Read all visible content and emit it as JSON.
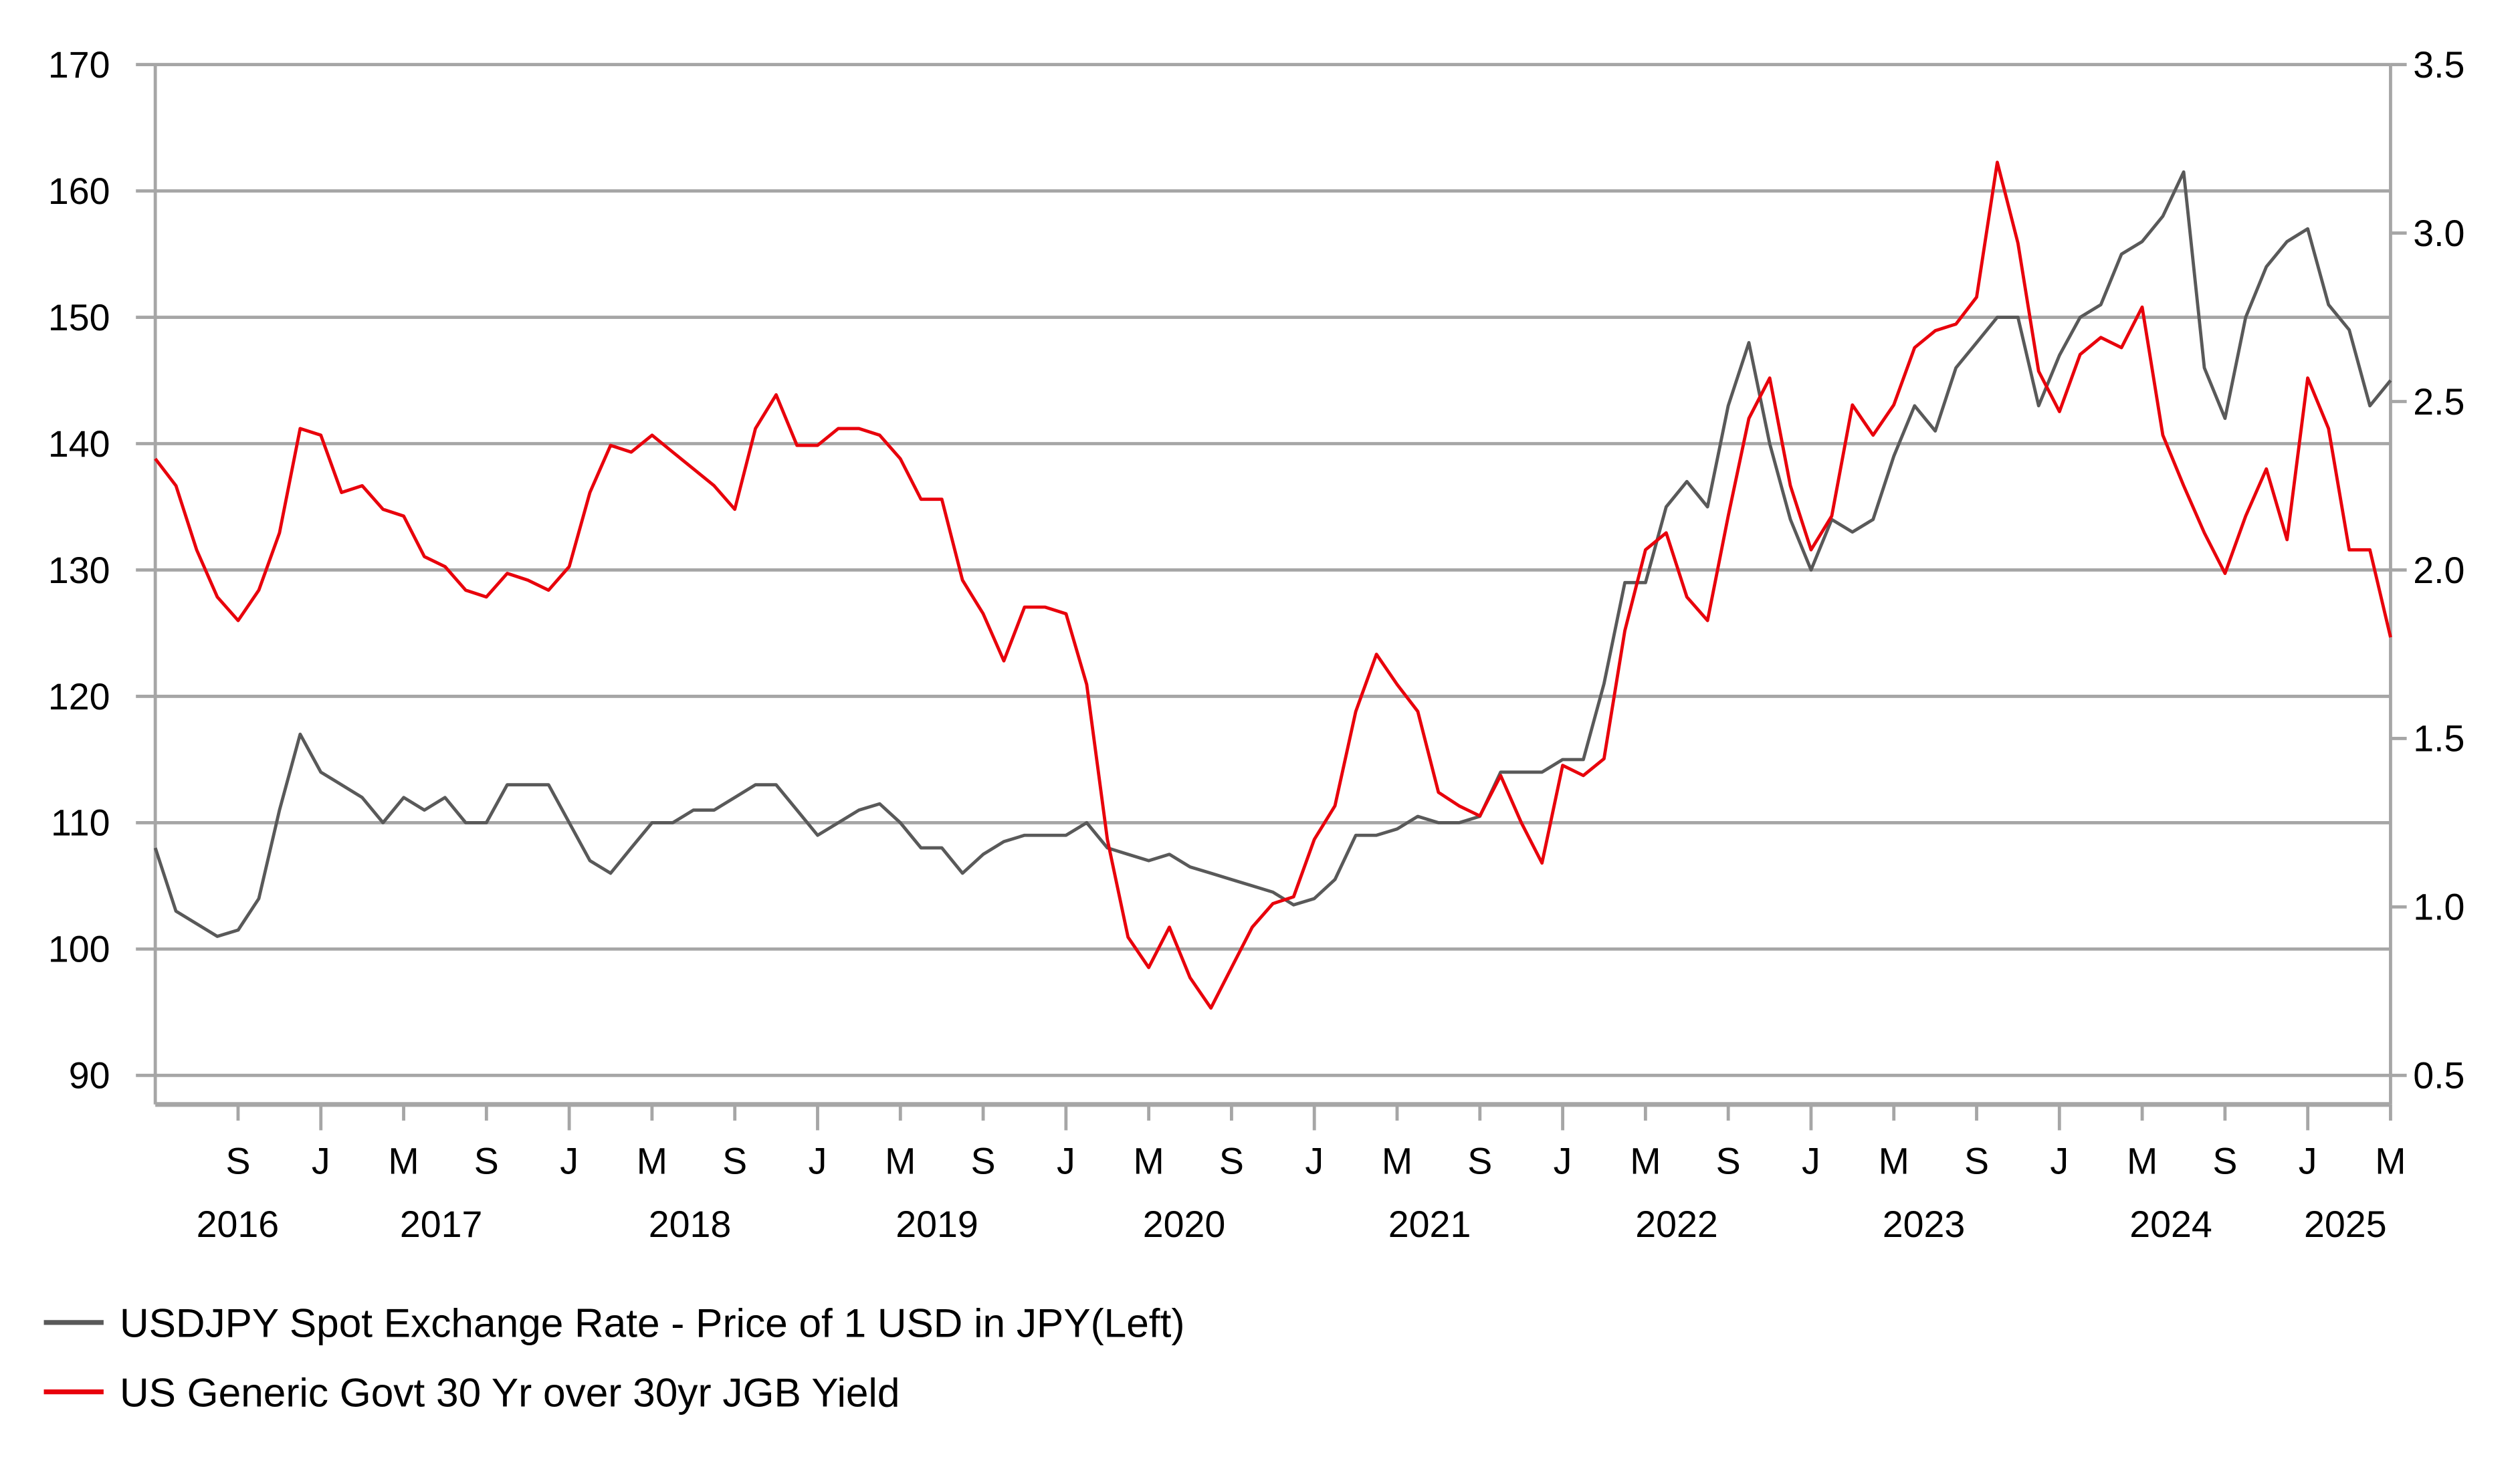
{
  "chart_data": {
    "type": "line",
    "title": "",
    "x_type": "date",
    "xlim": [
      "2016-05",
      "2025-05"
    ],
    "x_month_labels": [
      "S",
      "J",
      "M",
      "S",
      "J",
      "M",
      "S",
      "J",
      "M",
      "S",
      "J",
      "M",
      "S",
      "J",
      "M",
      "S",
      "J",
      "M",
      "S",
      "J",
      "M",
      "S",
      "J",
      "M",
      "S",
      "J",
      "M"
    ],
    "x_month_dates": [
      "2016-09",
      "2017-01",
      "2017-05",
      "2017-09",
      "2018-01",
      "2018-05",
      "2018-09",
      "2019-01",
      "2019-05",
      "2019-09",
      "2020-01",
      "2020-05",
      "2020-09",
      "2021-01",
      "2021-05",
      "2021-09",
      "2022-01",
      "2022-05",
      "2022-09",
      "2023-01",
      "2023-05",
      "2023-09",
      "2024-01",
      "2024-05",
      "2024-09",
      "2025-01",
      "2025-05"
    ],
    "x_year_labels": [
      "2016",
      "2017",
      "2018",
      "2019",
      "2020",
      "2021",
      "2022",
      "2023",
      "2024",
      "2025"
    ],
    "y_left": {
      "ylim": [
        90,
        170
      ],
      "ticks": [
        "90",
        "100",
        "110",
        "120",
        "130",
        "140",
        "150",
        "160",
        "170"
      ]
    },
    "y_right": {
      "ylim": [
        0.5,
        3.5
      ],
      "ticks": [
        "0.5",
        "1.0",
        "1.5",
        "2.0",
        "2.5",
        "3.0",
        "3.5"
      ]
    },
    "grid": true,
    "legend_placement": "bottom-left",
    "x": [
      "2016-05",
      "2016-06",
      "2016-07",
      "2016-08",
      "2016-09",
      "2016-10",
      "2016-11",
      "2016-12",
      "2017-01",
      "2017-02",
      "2017-03",
      "2017-04",
      "2017-05",
      "2017-06",
      "2017-07",
      "2017-08",
      "2017-09",
      "2017-10",
      "2017-11",
      "2017-12",
      "2018-01",
      "2018-02",
      "2018-03",
      "2018-04",
      "2018-05",
      "2018-06",
      "2018-07",
      "2018-08",
      "2018-09",
      "2018-10",
      "2018-11",
      "2018-12",
      "2019-01",
      "2019-02",
      "2019-03",
      "2019-04",
      "2019-05",
      "2019-06",
      "2019-07",
      "2019-08",
      "2019-09",
      "2019-10",
      "2019-11",
      "2019-12",
      "2020-01",
      "2020-02",
      "2020-03",
      "2020-04",
      "2020-05",
      "2020-06",
      "2020-07",
      "2020-08",
      "2020-09",
      "2020-10",
      "2020-11",
      "2020-12",
      "2021-01",
      "2021-02",
      "2021-03",
      "2021-04",
      "2021-05",
      "2021-06",
      "2021-07",
      "2021-08",
      "2021-09",
      "2021-10",
      "2021-11",
      "2021-12",
      "2022-01",
      "2022-02",
      "2022-03",
      "2022-04",
      "2022-05",
      "2022-06",
      "2022-07",
      "2022-08",
      "2022-09",
      "2022-10",
      "2022-11",
      "2022-12",
      "2023-01",
      "2023-02",
      "2023-03",
      "2023-04",
      "2023-05",
      "2023-06",
      "2023-07",
      "2023-08",
      "2023-09",
      "2023-10",
      "2023-11",
      "2023-12",
      "2024-01",
      "2024-02",
      "2024-03",
      "2024-04",
      "2024-05",
      "2024-06",
      "2024-07",
      "2024-08",
      "2024-09",
      "2024-10",
      "2024-11",
      "2024-12",
      "2025-01",
      "2025-02",
      "2025-03",
      "2025-04",
      "2025-05"
    ],
    "series": [
      {
        "name": "USDJPY Spot Exchange Rate - Price of 1 USD in JPY(Left)",
        "axis": "left",
        "color": "#595959",
        "values": [
          108,
          103,
          102,
          101,
          101.5,
          104,
          111,
          117,
          114,
          113,
          112,
          110,
          112,
          111,
          112,
          110,
          110,
          113,
          113,
          113,
          110,
          107,
          106,
          108,
          110,
          110,
          111,
          111,
          112,
          113,
          113,
          111,
          109,
          110,
          111,
          111.5,
          110,
          108,
          108,
          106,
          107.5,
          108.5,
          109,
          109,
          109,
          110,
          108,
          107.5,
          107,
          107.5,
          106.5,
          106,
          105.5,
          105,
          104.5,
          103.5,
          104,
          105.5,
          109,
          109,
          109.5,
          110.5,
          110,
          110,
          110.5,
          114,
          114,
          114,
          115,
          115,
          121,
          129,
          129,
          135,
          137,
          135,
          143,
          148,
          140,
          134,
          130,
          134,
          133,
          134,
          139,
          143,
          141,
          146,
          148,
          150,
          150,
          143,
          147,
          150,
          151,
          155,
          156,
          158,
          161.5,
          146,
          142,
          150,
          154,
          156,
          157,
          151,
          149,
          143,
          145
        ]
      },
      {
        "name": "US Generic Govt 30 Yr over 30yr JGB Yield",
        "axis": "right",
        "color": "#e8000b",
        "values": [
          2.33,
          2.25,
          2.06,
          1.92,
          1.85,
          1.94,
          2.11,
          2.42,
          2.4,
          2.23,
          2.25,
          2.18,
          2.16,
          2.04,
          2.01,
          1.94,
          1.92,
          1.99,
          1.97,
          1.94,
          2.01,
          2.23,
          2.37,
          2.35,
          2.4,
          2.35,
          2.3,
          2.25,
          2.18,
          2.42,
          2.52,
          2.37,
          2.37,
          2.42,
          2.42,
          2.4,
          2.33,
          2.21,
          2.21,
          1.97,
          1.87,
          1.73,
          1.89,
          1.89,
          1.87,
          1.66,
          1.2,
          0.91,
          0.82,
          0.94,
          0.79,
          0.7,
          0.82,
          0.94,
          1.01,
          1.03,
          1.2,
          1.3,
          1.58,
          1.75,
          1.66,
          1.58,
          1.34,
          1.3,
          1.27,
          1.39,
          1.25,
          1.13,
          1.42,
          1.39,
          1.44,
          1.82,
          2.06,
          2.11,
          1.92,
          1.85,
          2.16,
          2.45,
          2.57,
          2.25,
          2.06,
          2.16,
          2.49,
          2.4,
          2.49,
          2.66,
          2.71,
          2.73,
          2.81,
          3.21,
          2.97,
          2.59,
          2.47,
          2.64,
          2.69,
          2.66,
          2.78,
          2.4,
          2.25,
          2.11,
          1.99,
          2.16,
          2.3,
          2.09,
          2.57,
          2.42,
          2.06,
          2.06,
          1.8
        ]
      }
    ]
  }
}
